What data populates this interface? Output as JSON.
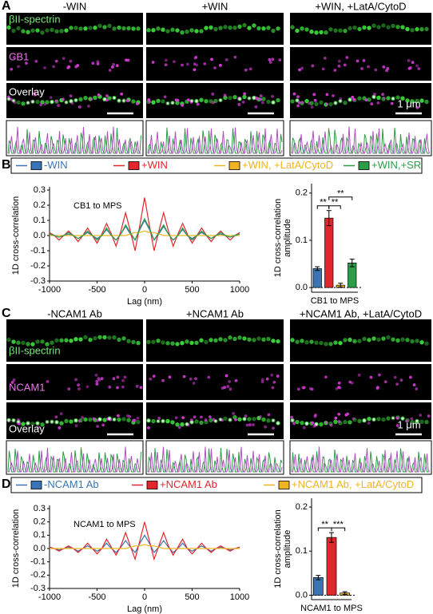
{
  "figure": {
    "A": {
      "letter": "A",
      "columns": [
        "-WIN",
        "+WIN",
        "+WIN, +LatA/CytoD"
      ],
      "channels": [
        "βII-spectrin",
        "CB1",
        "Overlay"
      ],
      "scale_bar": "1 μm"
    },
    "C": {
      "letter": "C",
      "columns": [
        "-NCAM1 Ab",
        "+NCAM1 Ab",
        "+NCAM1 Ab, +LatA/CytoD"
      ],
      "channels": [
        "βII-spectrin",
        "NCAM1",
        "Overlay"
      ],
      "scale_bar": "1 μm"
    }
  },
  "chart_data": [
    {
      "type": "line",
      "panel": "B",
      "annotation": "CB1 to MPS",
      "xlabel": "Lag (nm)",
      "ylabel": "1D cross-correlation",
      "legend": "top",
      "x": [
        -1000,
        -950,
        -900,
        -850,
        -800,
        -750,
        -700,
        -650,
        -600,
        -550,
        -500,
        -450,
        -400,
        -350,
        -300,
        -250,
        -200,
        -150,
        -100,
        -50,
        0,
        50,
        100,
        150,
        200,
        250,
        300,
        350,
        400,
        450,
        500,
        550,
        600,
        650,
        700,
        750,
        800,
        850,
        900,
        950,
        1000
      ],
      "xlim": [
        -1000,
        1000
      ],
      "xticks": [
        -1000,
        -500,
        0,
        500,
        1000
      ],
      "ylim": [
        -0.3,
        0.3
      ],
      "yticks": [
        0.3,
        0.2,
        0.1,
        {
          "value": 0,
          "label": "0.0"
        },
        -0.1,
        -0.2,
        -0.3
      ],
      "series": [
        {
          "name": "-WIN",
          "color": "#3a74b4",
          "values": [
            0.01,
            0,
            -0.01,
            0,
            0.01,
            0,
            -0.02,
            0,
            0.02,
            0,
            -0.02,
            0,
            0.04,
            0,
            -0.03,
            0.01,
            0.06,
            0.01,
            -0.03,
            0.04,
            0.1,
            0.04,
            -0.03,
            0.01,
            0.06,
            0.01,
            -0.03,
            0,
            0.04,
            0,
            -0.02,
            0,
            0.02,
            0,
            -0.02,
            0,
            0.01,
            0,
            -0.01,
            0,
            0.01
          ]
        },
        {
          "name": "+WIN",
          "color": "#e3262b",
          "values": [
            0.02,
            0,
            -0.03,
            0,
            0.03,
            0,
            -0.04,
            0,
            0.05,
            0,
            -0.05,
            0.01,
            0.08,
            0.01,
            -0.07,
            0.03,
            0.15,
            0.03,
            -0.1,
            0.07,
            0.25,
            0.07,
            -0.1,
            0.03,
            0.15,
            0.03,
            -0.07,
            0.01,
            0.08,
            0.01,
            -0.05,
            0,
            0.05,
            0,
            -0.04,
            0,
            0.03,
            0,
            -0.03,
            0,
            0.02
          ]
        },
        {
          "name": "+WIN, +LatA/CytoD",
          "color": "#f0b323",
          "values": [
            0,
            0,
            0,
            0,
            0,
            0,
            0,
            0,
            0,
            0,
            0,
            0,
            0,
            0,
            0,
            0,
            0,
            0.01,
            0.02,
            0.02,
            0.03,
            0.02,
            0.02,
            0.01,
            0,
            0,
            0,
            0,
            0,
            0,
            0,
            0,
            0,
            0,
            0,
            0,
            0,
            0,
            0,
            0,
            0
          ]
        },
        {
          "name": "+WIN,+SR",
          "color": "#2a9d46",
          "values": [
            0.01,
            0,
            -0.01,
            0,
            0.02,
            0,
            -0.02,
            0,
            0.03,
            0,
            -0.03,
            0,
            0.05,
            0,
            -0.03,
            0.01,
            0.07,
            0.02,
            -0.03,
            0.05,
            0.11,
            0.05,
            -0.03,
            0.02,
            0.07,
            0.01,
            -0.03,
            0,
            0.05,
            0,
            -0.03,
            0,
            0.03,
            0,
            -0.02,
            0,
            0.02,
            0,
            -0.01,
            0,
            0.01
          ]
        }
      ]
    },
    {
      "type": "bar",
      "panel": "B",
      "xlabel": "CB1 to MPS",
      "ylabel": [
        "1D cross-correlation",
        "amplitude"
      ],
      "values": [
        0.04,
        0.147,
        0.005,
        0.052
      ],
      "errors": [
        0.004,
        0.016,
        0.004,
        0.008
      ],
      "colors": [
        "#3a74b4",
        "#e3262b",
        "#f0b323",
        "#2a9d46"
      ],
      "ylim": [
        -0.01,
        0.22
      ],
      "yticks": [
        {
          "value": 0,
          "label": "0.0"
        },
        0.1,
        0.2
      ],
      "zero_line": true,
      "significance": [
        {
          "from": 0,
          "to": 1,
          "label": "**"
        },
        {
          "from": 1,
          "to": 2,
          "label": "**"
        },
        {
          "from": 1,
          "to": 3,
          "label": "**"
        }
      ]
    },
    {
      "type": "line",
      "panel": "D",
      "annotation": "NCAM1 to MPS",
      "xlabel": "Lag (nm)",
      "ylabel": "1D cross-correlation",
      "legend": "top",
      "x": [
        -1000,
        -950,
        -900,
        -850,
        -800,
        -750,
        -700,
        -650,
        -600,
        -550,
        -500,
        -450,
        -400,
        -350,
        -300,
        -250,
        -200,
        -150,
        -100,
        -50,
        0,
        50,
        100,
        150,
        200,
        250,
        300,
        350,
        400,
        450,
        500,
        550,
        600,
        650,
        700,
        750,
        800,
        850,
        900,
        950,
        1000
      ],
      "xlim": [
        -1000,
        1000
      ],
      "xticks": [
        -1000,
        -500,
        0,
        500,
        1000
      ],
      "ylim": [
        -0.3,
        0.3
      ],
      "yticks": [
        0.3,
        0.2,
        0.1,
        {
          "value": 0,
          "label": "0.0"
        },
        -0.1,
        -0.2,
        -0.3
      ],
      "series": [
        {
          "name": "-NCAM1 Ab",
          "color": "#3a74b4",
          "values": [
            0.01,
            0,
            -0.01,
            0,
            0.01,
            0,
            -0.02,
            0,
            0.02,
            0,
            -0.02,
            0,
            0.04,
            0,
            -0.03,
            0.01,
            0.06,
            0.01,
            -0.03,
            0.04,
            0.1,
            0.04,
            -0.03,
            0.01,
            0.06,
            0.01,
            -0.03,
            0,
            0.04,
            0,
            -0.02,
            0,
            0.02,
            0,
            -0.02,
            0,
            0.01,
            0,
            -0.01,
            0,
            0.01
          ]
        },
        {
          "name": "+NCAM1 Ab",
          "color": "#e3262b",
          "values": [
            0.01,
            0,
            -0.02,
            0,
            0.02,
            0,
            -0.03,
            0,
            0.04,
            0,
            -0.04,
            0,
            0.07,
            0.01,
            -0.05,
            0.02,
            0.12,
            0.02,
            -0.08,
            0.06,
            0.2,
            0.06,
            -0.08,
            0.02,
            0.12,
            0.02,
            -0.05,
            0.01,
            0.07,
            0,
            -0.04,
            0,
            0.04,
            0,
            -0.03,
            0,
            0.02,
            0,
            -0.02,
            0,
            0.01
          ]
        },
        {
          "name": "+NCAM1 Ab, +LatA/CytoD",
          "color": "#f0b323",
          "values": [
            0,
            0,
            0,
            0,
            0,
            0,
            0,
            0,
            0,
            0,
            0,
            0,
            0,
            0,
            0,
            0,
            0,
            0.01,
            0.02,
            0.02,
            0.03,
            0.02,
            0.02,
            0.01,
            0,
            0,
            0,
            0,
            0,
            0,
            0,
            0,
            0,
            0,
            0,
            0,
            0,
            0,
            0,
            0,
            0
          ]
        }
      ]
    },
    {
      "type": "bar",
      "panel": "D",
      "xlabel": "NCAM1 to MPS",
      "ylabel": [
        "1D cross-correlation",
        "amplitude"
      ],
      "values": [
        0.04,
        0.131,
        0.005
      ],
      "errors": [
        0.005,
        0.011,
        0.003
      ],
      "colors": [
        "#3a74b4",
        "#e3262b",
        "#f0b323"
      ],
      "ylim": [
        -0.01,
        0.22
      ],
      "yticks": [
        {
          "value": 0,
          "label": "0.0"
        },
        0.1,
        0.2
      ],
      "zero_line": true,
      "significance": [
        {
          "from": 0,
          "to": 1,
          "label": "**"
        },
        {
          "from": 1,
          "to": 2,
          "label": "***"
        }
      ]
    }
  ]
}
